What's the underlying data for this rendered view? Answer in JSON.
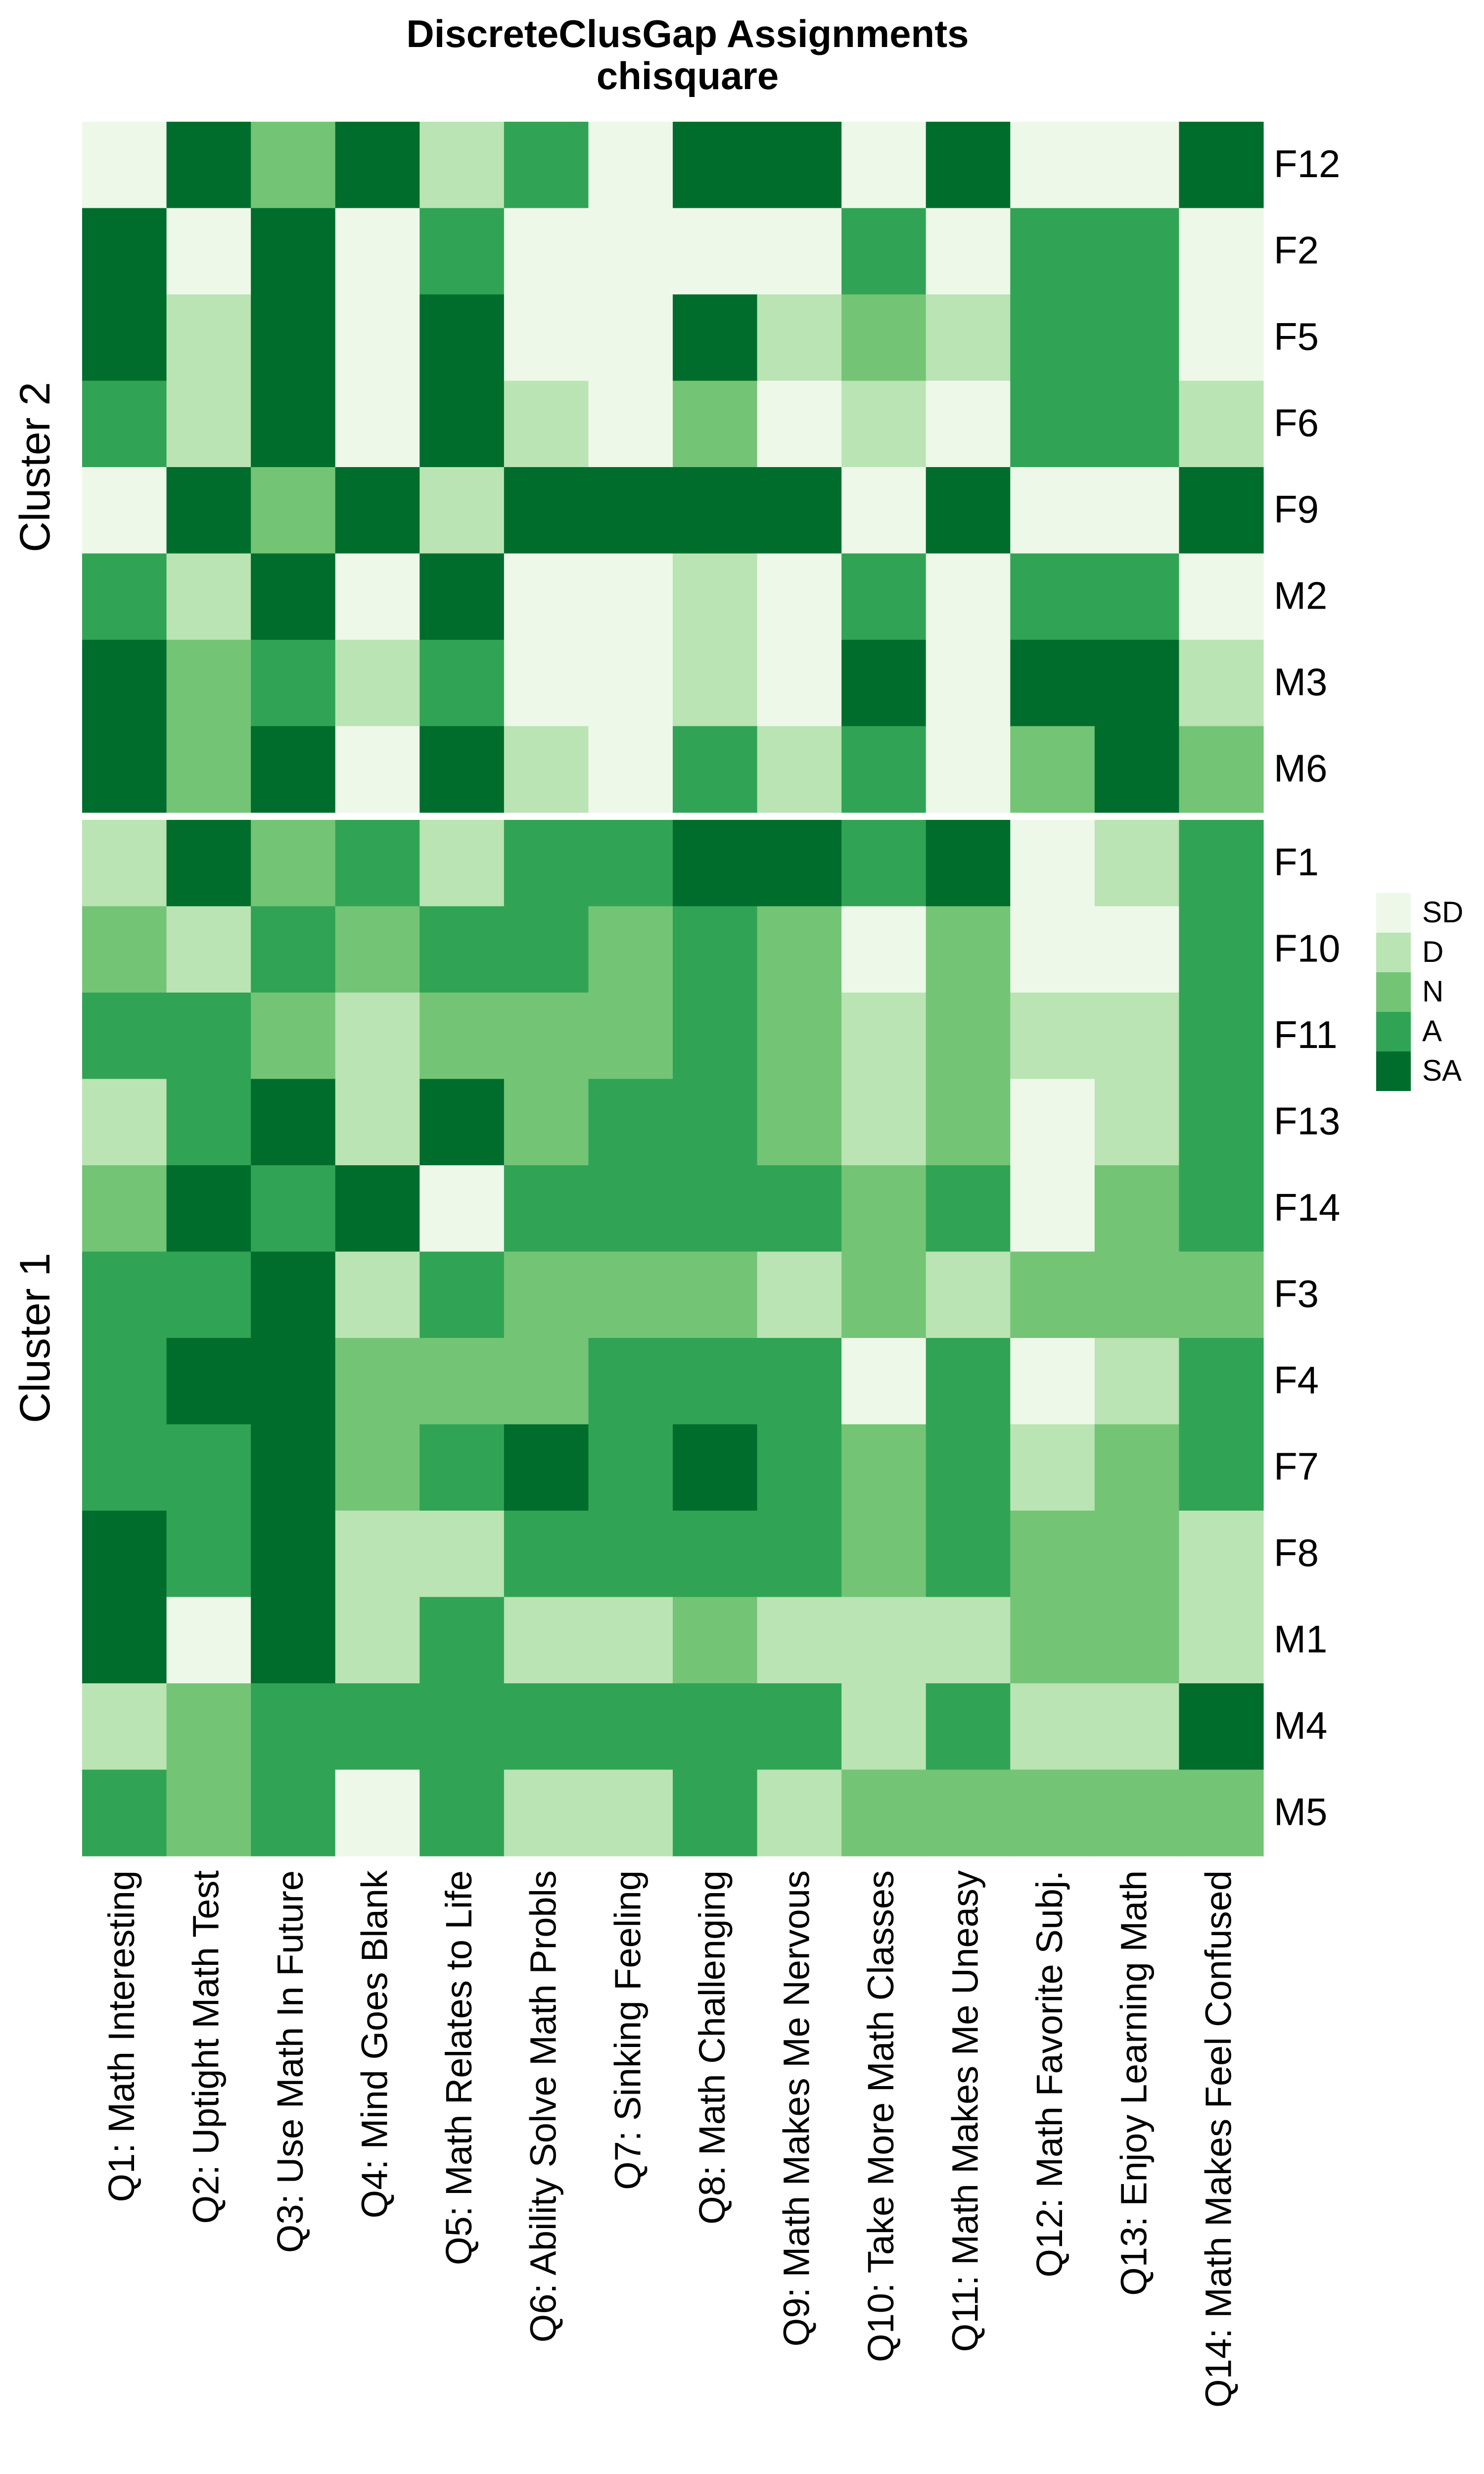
{
  "chart_data": {
    "type": "heatmap",
    "title": "DiscreteClusGap Assignments",
    "subtitle": "chisquare",
    "columns": [
      "Q1: Math Interesting",
      "Q2: Uptight Math Test",
      "Q3: Use Math In Future",
      "Q4: Mind Goes Blank",
      "Q5: Math Relates to Life",
      "Q6: Ability Solve Math Probls",
      "Q7: Sinking Feeling",
      "Q8: Math Challenging",
      "Q9: Math Makes Me Nervous",
      "Q10: Take More Math Classes",
      "Q11: Math Makes Me Uneasy",
      "Q12: Math Favorite Subj.",
      "Q13: Enjoy Learning Math",
      "Q14: Math Makes Feel Confused"
    ],
    "legend": {
      "levels": [
        "SD",
        "D",
        "N",
        "A",
        "SA"
      ],
      "colors": [
        "#EDF8E9",
        "#BAE4B3",
        "#74C476",
        "#31A354",
        "#006D2C"
      ],
      "placement": "right"
    },
    "clusters": [
      {
        "label": "Cluster 2",
        "rows": [
          {
            "name": "F12",
            "values": [
              "SD",
              "SA",
              "N",
              "SA",
              "D",
              "A",
              "SD",
              "SA",
              "SA",
              "SD",
              "SA",
              "SD",
              "SD",
              "SA"
            ]
          },
          {
            "name": "F2",
            "values": [
              "SA",
              "SD",
              "SA",
              "SD",
              "A",
              "SD",
              "SD",
              "SD",
              "SD",
              "A",
              "SD",
              "A",
              "A",
              "SD"
            ]
          },
          {
            "name": "F5",
            "values": [
              "SA",
              "D",
              "SA",
              "SD",
              "SA",
              "SD",
              "SD",
              "SA",
              "D",
              "N",
              "D",
              "A",
              "A",
              "SD"
            ]
          },
          {
            "name": "F6",
            "values": [
              "A",
              "D",
              "SA",
              "SD",
              "SA",
              "D",
              "SD",
              "N",
              "SD",
              "D",
              "SD",
              "A",
              "A",
              "D"
            ]
          },
          {
            "name": "F9",
            "values": [
              "SD",
              "SA",
              "N",
              "SA",
              "D",
              "SA",
              "SA",
              "SA",
              "SA",
              "SD",
              "SA",
              "SD",
              "SD",
              "SA"
            ]
          },
          {
            "name": "M2",
            "values": [
              "A",
              "D",
              "SA",
              "SD",
              "SA",
              "SD",
              "SD",
              "D",
              "SD",
              "A",
              "SD",
              "A",
              "A",
              "SD"
            ]
          },
          {
            "name": "M3",
            "values": [
              "SA",
              "N",
              "A",
              "D",
              "A",
              "SD",
              "SD",
              "D",
              "SD",
              "SA",
              "SD",
              "SA",
              "SA",
              "D"
            ]
          },
          {
            "name": "M6",
            "values": [
              "SA",
              "N",
              "SA",
              "SD",
              "SA",
              "D",
              "SD",
              "A",
              "D",
              "A",
              "SD",
              "N",
              "SA",
              "N"
            ]
          }
        ]
      },
      {
        "label": "Cluster 1",
        "rows": [
          {
            "name": "F1",
            "values": [
              "D",
              "SA",
              "N",
              "A",
              "D",
              "A",
              "A",
              "SA",
              "SA",
              "A",
              "SA",
              "SD",
              "D",
              "A"
            ]
          },
          {
            "name": "F10",
            "values": [
              "N",
              "D",
              "A",
              "N",
              "A",
              "A",
              "N",
              "A",
              "N",
              "SD",
              "N",
              "SD",
              "SD",
              "A"
            ]
          },
          {
            "name": "F11",
            "values": [
              "A",
              "A",
              "N",
              "D",
              "N",
              "N",
              "N",
              "A",
              "N",
              "D",
              "N",
              "D",
              "D",
              "A"
            ]
          },
          {
            "name": "F13",
            "values": [
              "D",
              "A",
              "SA",
              "D",
              "SA",
              "N",
              "A",
              "A",
              "N",
              "D",
              "N",
              "SD",
              "D",
              "A"
            ]
          },
          {
            "name": "F14",
            "values": [
              "N",
              "SA",
              "A",
              "SA",
              "SD",
              "A",
              "A",
              "A",
              "A",
              "N",
              "A",
              "SD",
              "N",
              "A"
            ]
          },
          {
            "name": "F3",
            "values": [
              "A",
              "A",
              "SA",
              "D",
              "A",
              "N",
              "N",
              "N",
              "D",
              "N",
              "D",
              "N",
              "N",
              "N"
            ]
          },
          {
            "name": "F4",
            "values": [
              "A",
              "SA",
              "SA",
              "N",
              "N",
              "N",
              "A",
              "A",
              "A",
              "SD",
              "A",
              "SD",
              "D",
              "A"
            ]
          },
          {
            "name": "F7",
            "values": [
              "A",
              "A",
              "SA",
              "N",
              "A",
              "SA",
              "A",
              "SA",
              "A",
              "N",
              "A",
              "D",
              "N",
              "A"
            ]
          },
          {
            "name": "F8",
            "values": [
              "SA",
              "A",
              "SA",
              "D",
              "D",
              "A",
              "A",
              "A",
              "A",
              "N",
              "A",
              "N",
              "N",
              "D"
            ]
          },
          {
            "name": "M1",
            "values": [
              "SA",
              "SD",
              "SA",
              "D",
              "A",
              "D",
              "D",
              "N",
              "D",
              "D",
              "D",
              "N",
              "N",
              "D"
            ]
          },
          {
            "name": "M4",
            "values": [
              "D",
              "N",
              "A",
              "A",
              "A",
              "A",
              "A",
              "A",
              "A",
              "D",
              "A",
              "D",
              "D",
              "SA"
            ]
          },
          {
            "name": "M5",
            "values": [
              "A",
              "N",
              "A",
              "SD",
              "A",
              "D",
              "D",
              "A",
              "D",
              "N",
              "N",
              "N",
              "N",
              "N"
            ]
          }
        ]
      }
    ]
  }
}
